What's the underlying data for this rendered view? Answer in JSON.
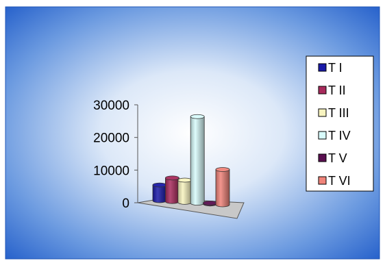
{
  "chart_data": {
    "type": "bar",
    "style": "3d-cylinder",
    "categories": [
      "T I",
      "T II",
      "T III",
      "T IV",
      "T V",
      "T VI"
    ],
    "values": [
      4800,
      7200,
      6800,
      26500,
      300,
      10800
    ],
    "colors": [
      "#1a1aa8",
      "#a82a5c",
      "#f8f4c0",
      "#d8fbfb",
      "#5a1050",
      "#f0847a"
    ],
    "ylim": [
      0,
      30000
    ],
    "yticks": [
      0,
      10000,
      20000,
      30000
    ],
    "ytick_labels": [
      "0",
      "10000",
      "20000",
      "30000"
    ],
    "grid": false,
    "legend_position": "right",
    "background": "radial gradient, pale blue center to blue edges"
  }
}
